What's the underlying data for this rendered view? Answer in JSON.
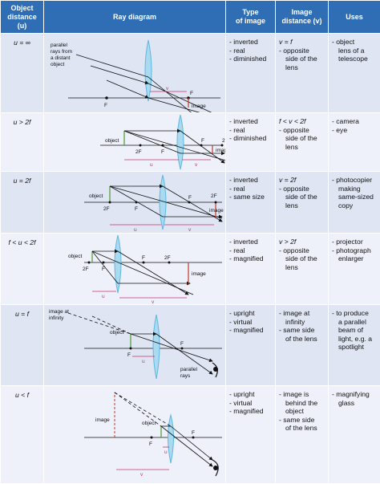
{
  "headers": {
    "object_distance": [
      "Object",
      "distance",
      "(u)"
    ],
    "ray_diagram": "Ray diagram",
    "type_of_image": [
      "Type",
      "of image"
    ],
    "image_distance": [
      "Image",
      "distance (v)"
    ],
    "uses": "Uses"
  },
  "rows": [
    {
      "distance": "u = ∞",
      "type": [
        "- inverted",
        "- real",
        "- diminished"
      ],
      "image_distance": [
        "v = f",
        "- opposite",
        "side of the",
        "lens"
      ],
      "uses": [
        "- object",
        "lens of a",
        "telescope"
      ],
      "labels": {
        "parallel": "parallel",
        "rays_from": "rays from",
        "a_distant": "a distant",
        "object": "object",
        "F1": "F",
        "F2": "F",
        "v": "v",
        "image": "image"
      }
    },
    {
      "distance": "u > 2f",
      "type": [
        "- inverted",
        "- real",
        "- diminished"
      ],
      "image_distance": [
        "f < v < 2f",
        "- opposite",
        "side of the",
        "lens"
      ],
      "uses": [
        "- camera",
        "- eye"
      ],
      "labels": {
        "object": "object",
        "twoF1": "2F",
        "F1": "F",
        "F2": "F",
        "twoF2": "2F",
        "u": "u",
        "v": "v",
        "image": "image"
      }
    },
    {
      "distance": "u = 2f",
      "type": [
        "- inverted",
        "- real",
        "- same size"
      ],
      "image_distance": [
        "v = 2f",
        "- opposite",
        "side of the",
        "lens"
      ],
      "uses": [
        "- photocopier",
        "making",
        "same-sized",
        "copy"
      ],
      "labels": {
        "object": "object",
        "twoF1": "2F",
        "F1": "F",
        "F2": "F",
        "twoF2": "2F",
        "u": "u",
        "v": "v",
        "image": "image"
      }
    },
    {
      "distance": "f < u < 2f",
      "type": [
        "- inverted",
        "- real",
        "- magnified"
      ],
      "image_distance": [
        "v > 2f",
        "- opposite",
        "side of the",
        "lens"
      ],
      "uses": [
        "- projector",
        "- photograph",
        "enlarger"
      ],
      "labels": {
        "object": "object",
        "twoF1": "2F",
        "F1": "F",
        "F2": "F",
        "twoF2": "2F",
        "u": "u",
        "v": "v",
        "image": "image"
      }
    },
    {
      "distance": "u = f",
      "type": [
        "- upright",
        "- virtual",
        "- magnified"
      ],
      "image_distance": [
        "- image at",
        "infinity",
        "- same side",
        "of the lens"
      ],
      "uses": [
        "- to produce",
        "a parallel",
        "beam of",
        "light, e.g. a",
        "spotlight"
      ],
      "labels": {
        "image_at": "image at",
        "infinity": "infinity",
        "object": "object",
        "F1": "F",
        "F2": "F",
        "u": "u",
        "parallel": "parallel",
        "rays": "rays"
      }
    },
    {
      "distance": "u < f",
      "type": [
        "- upright",
        "- virtual",
        "- magnified"
      ],
      "image_distance": [
        "- image is",
        "behind the",
        "object",
        "- same side",
        "of the lens"
      ],
      "uses": [
        "- magnifying",
        "glass"
      ],
      "labels": {
        "image": "image",
        "object": "object",
        "F1": "F",
        "F2": "F",
        "u": "u",
        "v": "v"
      }
    }
  ],
  "colors": {
    "header": "#2f6eb5",
    "row_odd": "#dfe5f3",
    "row_even": "#eef1f9",
    "lens": "#5fb7e0",
    "object_arrow": "#4a9a2f",
    "image_arrow": "#c0392b",
    "distance_marker": "#c8306e"
  }
}
